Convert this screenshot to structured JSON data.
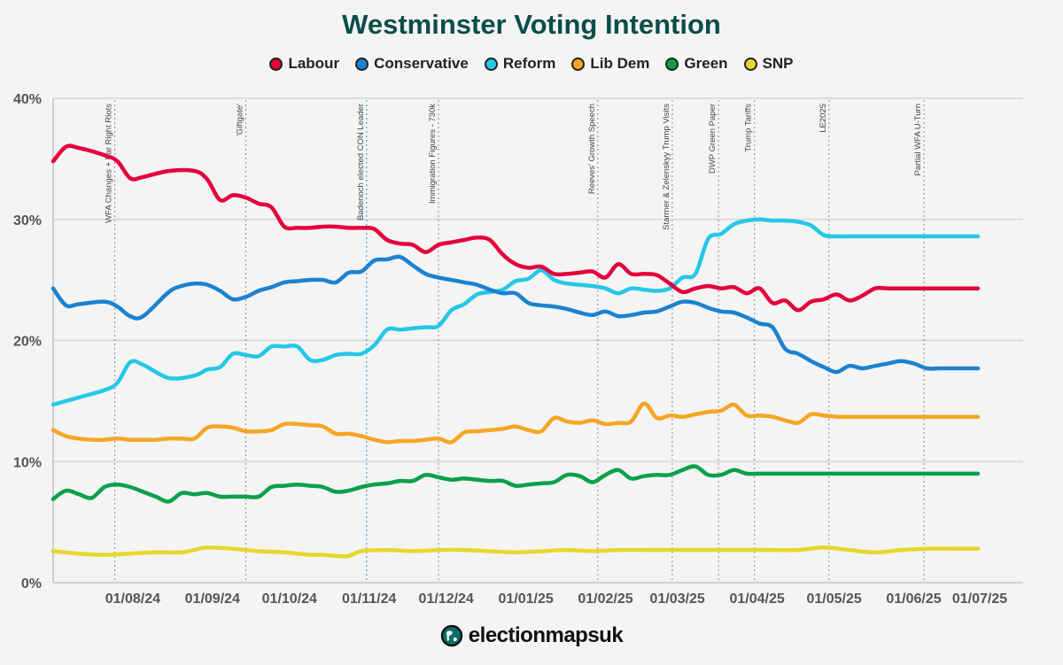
{
  "title": "Westminster Voting Intention",
  "brand": "electionmapsuk",
  "colors": {
    "title": "#0b4d4a",
    "Labour": "#e4003b",
    "Conservative": "#1c82d0",
    "Reform": "#24c8e6",
    "Lib Dem": "#f5a623",
    "Green": "#0aa04a",
    "SNP": "#e8d62e"
  },
  "chart_data": {
    "type": "line",
    "title": "Westminster Voting Intention",
    "xlabel": "",
    "ylabel": "",
    "ylim": [
      0,
      40
    ],
    "yticks": [
      0,
      10,
      20,
      30,
      40
    ],
    "ytick_labels": [
      "0%",
      "10%",
      "20%",
      "30%",
      "40%"
    ],
    "xlim": [
      0,
      360
    ],
    "xticks": [
      31,
      62,
      92,
      123,
      153,
      184,
      215,
      243,
      274,
      304,
      335,
      365
    ],
    "xtick_labels": [
      "01/08/24",
      "01/09/24",
      "01/10/24",
      "01/11/24",
      "01/12/24",
      "01/01/25",
      "01/02/25",
      "01/03/25",
      "01/04/25",
      "01/05/25",
      "01/06/25",
      "01/07/25"
    ],
    "x_unit": "days since 07/07/24 (approx.)",
    "grid": true,
    "legend": "top-center",
    "events": [
      {
        "x": 24,
        "label": "WFA Changes + Far Right Riots"
      },
      {
        "x": 75,
        "label": "'Giftgate'"
      },
      {
        "x": 122,
        "label": "Badenoch elected CON Leader"
      },
      {
        "x": 150,
        "label": "Immigration Figures - 730k"
      },
      {
        "x": 212,
        "label": "Reeves' Growth Speech"
      },
      {
        "x": 241,
        "label": "Starmer & Zelenskyy Trump Visits"
      },
      {
        "x": 259,
        "label": "DWP Green Paper"
      },
      {
        "x": 273,
        "label": "Trump Tariffs"
      },
      {
        "x": 302,
        "label": "LE2025"
      },
      {
        "x": 339,
        "label": "Partial WFA U-Turn"
      }
    ],
    "series": [
      {
        "name": "Labour",
        "x": [
          0,
          5,
          10,
          20,
          25,
          30,
          35,
          45,
          55,
          60,
          65,
          70,
          75,
          80,
          85,
          90,
          95,
          100,
          105,
          110,
          115,
          120,
          125,
          130,
          135,
          140,
          145,
          150,
          155,
          160,
          165,
          170,
          175,
          180,
          185,
          190,
          195,
          200,
          205,
          210,
          215,
          220,
          225,
          230,
          235,
          240,
          245,
          250,
          255,
          260,
          265,
          270,
          275,
          280,
          285,
          290,
          295,
          300,
          305,
          310,
          315,
          320,
          325,
          330,
          335,
          340,
          345,
          350,
          355,
          360
        ],
        "values": [
          34.8,
          36,
          35.9,
          35.3,
          34.8,
          33.4,
          33.5,
          34,
          34,
          33.3,
          31.6,
          32,
          31.8,
          31.3,
          31,
          29.4,
          29.3,
          29.3,
          29.4,
          29.4,
          29.3,
          29.3,
          29.2,
          28.3,
          28,
          27.9,
          27.3,
          27.9,
          28.1,
          28.3,
          28.5,
          28.3,
          27.1,
          26.3,
          26,
          26.1,
          25.5,
          25.5,
          25.6,
          25.7,
          25.2,
          26.3,
          25.5,
          25.5,
          25.4,
          24.7,
          24,
          24.3,
          24.5,
          24.3,
          24.4,
          23.9,
          24.3,
          23.1,
          23.3,
          22.5,
          23.2,
          23.4,
          23.8,
          23.3,
          23.7,
          24.3,
          24.3,
          24.3,
          24.3,
          24.3,
          24.3,
          24.3,
          24.3,
          24.3
        ]
      },
      {
        "name": "Conservative",
        "x": [
          0,
          5,
          10,
          20,
          25,
          30,
          35,
          45,
          50,
          55,
          60,
          65,
          70,
          75,
          80,
          85,
          90,
          95,
          100,
          105,
          110,
          115,
          120,
          125,
          130,
          135,
          140,
          145,
          150,
          155,
          160,
          165,
          170,
          175,
          180,
          185,
          190,
          195,
          200,
          205,
          210,
          215,
          220,
          225,
          230,
          235,
          240,
          245,
          250,
          255,
          260,
          265,
          270,
          275,
          280,
          285,
          290,
          295,
          300,
          305,
          310,
          315,
          320,
          325,
          330,
          335,
          340,
          345,
          350,
          355,
          360
        ],
        "values": [
          24.3,
          22.9,
          23,
          23.2,
          22.8,
          22,
          22,
          24,
          24.5,
          24.7,
          24.6,
          24.1,
          23.4,
          23.6,
          24.1,
          24.4,
          24.8,
          24.9,
          25,
          25,
          24.8,
          25.6,
          25.7,
          26.6,
          26.7,
          26.9,
          26.2,
          25.5,
          25.2,
          25,
          24.8,
          24.6,
          24.2,
          23.9,
          23.9,
          23.1,
          22.9,
          22.8,
          22.6,
          22.3,
          22.1,
          22.4,
          22,
          22.1,
          22.3,
          22.4,
          22.8,
          23.2,
          23.1,
          22.7,
          22.4,
          22.3,
          21.9,
          21.4,
          21.1,
          19.3,
          18.9,
          18.3,
          17.8,
          17.4,
          17.9,
          17.7,
          17.9,
          18.1,
          18.3,
          18.1,
          17.7,
          17.7,
          17.7,
          17.7,
          17.7
        ]
      },
      {
        "name": "Reform",
        "x": [
          0,
          10,
          20,
          25,
          30,
          35,
          45,
          55,
          60,
          65,
          70,
          75,
          80,
          85,
          90,
          95,
          100,
          105,
          110,
          115,
          120,
          125,
          130,
          135,
          140,
          145,
          150,
          155,
          160,
          165,
          170,
          175,
          180,
          185,
          190,
          195,
          200,
          205,
          210,
          215,
          220,
          225,
          230,
          235,
          240,
          245,
          250,
          255,
          260,
          265,
          270,
          275,
          280,
          285,
          290,
          295,
          300,
          305,
          310,
          315,
          320,
          325,
          330,
          335,
          340,
          345,
          350,
          355,
          360
        ],
        "values": [
          14.7,
          15.3,
          15.9,
          16.5,
          18.2,
          18,
          16.9,
          17.1,
          17.6,
          17.8,
          18.9,
          18.8,
          18.7,
          19.5,
          19.5,
          19.5,
          18.4,
          18.4,
          18.8,
          18.9,
          18.9,
          19.6,
          20.9,
          20.9,
          21,
          21.1,
          21.2,
          22.5,
          23,
          23.8,
          24,
          24.2,
          24.9,
          25.1,
          25.8,
          25,
          24.7,
          24.6,
          24.5,
          24.3,
          23.9,
          24.3,
          24.2,
          24.1,
          24.3,
          25.2,
          25.5,
          28.4,
          28.8,
          29.6,
          29.9,
          30,
          29.9,
          29.9,
          29.8,
          29.5,
          28.7,
          28.6,
          28.6,
          28.6,
          28.6,
          28.6,
          28.6,
          28.6,
          28.6,
          28.6,
          28.6,
          28.6,
          28.6
        ]
      },
      {
        "name": "Lib Dem",
        "x": [
          0,
          5,
          10,
          15,
          20,
          25,
          30,
          35,
          40,
          45,
          50,
          55,
          60,
          65,
          70,
          75,
          80,
          85,
          90,
          95,
          100,
          105,
          110,
          115,
          120,
          125,
          130,
          135,
          140,
          145,
          150,
          155,
          160,
          165,
          170,
          175,
          180,
          185,
          190,
          195,
          200,
          205,
          210,
          215,
          220,
          225,
          230,
          235,
          240,
          245,
          250,
          255,
          260,
          265,
          270,
          275,
          280,
          285,
          290,
          295,
          300,
          305,
          310,
          315,
          320,
          325,
          330,
          335,
          340,
          345,
          350,
          355,
          360
        ],
        "values": [
          12.6,
          12.1,
          11.9,
          11.8,
          11.8,
          11.9,
          11.8,
          11.8,
          11.8,
          11.9,
          11.9,
          11.9,
          12.8,
          12.9,
          12.8,
          12.5,
          12.5,
          12.6,
          13.1,
          13.1,
          13,
          12.9,
          12.3,
          12.3,
          12.1,
          11.8,
          11.6,
          11.7,
          11.7,
          11.8,
          11.9,
          11.6,
          12.4,
          12.5,
          12.6,
          12.7,
          12.9,
          12.6,
          12.5,
          13.6,
          13.3,
          13.2,
          13.4,
          13.1,
          13.2,
          13.3,
          14.8,
          13.6,
          13.8,
          13.7,
          13.9,
          14.1,
          14.2,
          14.7,
          13.8,
          13.8,
          13.7,
          13.4,
          13.2,
          13.9,
          13.8,
          13.7,
          13.7,
          13.7,
          13.7,
          13.7,
          13.7,
          13.7,
          13.7,
          13.7,
          13.7,
          13.7,
          13.7
        ]
      },
      {
        "name": "Green",
        "x": [
          0,
          5,
          10,
          15,
          20,
          25,
          30,
          35,
          40,
          45,
          50,
          55,
          60,
          65,
          70,
          75,
          80,
          85,
          90,
          95,
          100,
          105,
          110,
          115,
          120,
          125,
          130,
          135,
          140,
          145,
          150,
          155,
          160,
          165,
          170,
          175,
          180,
          185,
          190,
          195,
          200,
          205,
          210,
          215,
          220,
          225,
          230,
          235,
          240,
          245,
          250,
          255,
          260,
          265,
          270,
          275,
          280,
          285,
          290,
          295,
          300,
          305,
          310,
          315,
          320,
          325,
          330,
          335,
          340,
          345,
          350,
          355,
          360
        ],
        "values": [
          6.9,
          7.6,
          7.3,
          7,
          7.9,
          8.1,
          7.9,
          7.5,
          7.1,
          6.7,
          7.4,
          7.3,
          7.4,
          7.1,
          7.1,
          7.1,
          7.1,
          7.9,
          8,
          8.1,
          8,
          7.9,
          7.5,
          7.6,
          7.9,
          8.1,
          8.2,
          8.4,
          8.4,
          8.9,
          8.7,
          8.5,
          8.6,
          8.5,
          8.4,
          8.4,
          8,
          8.1,
          8.2,
          8.3,
          8.9,
          8.8,
          8.3,
          8.9,
          9.3,
          8.6,
          8.8,
          8.9,
          8.9,
          9.3,
          9.6,
          8.9,
          8.9,
          9.3,
          9,
          9,
          9,
          9,
          9,
          9,
          9,
          9,
          9,
          9,
          9,
          9,
          9,
          9,
          9,
          9,
          9,
          9,
          9
        ]
      },
      {
        "name": "SNP",
        "x": [
          0,
          10,
          20,
          30,
          40,
          50,
          55,
          60,
          70,
          80,
          90,
          100,
          105,
          110,
          115,
          120,
          130,
          140,
          150,
          160,
          170,
          180,
          190,
          200,
          210,
          220,
          230,
          240,
          250,
          260,
          270,
          280,
          290,
          300,
          310,
          320,
          330,
          340,
          350,
          360
        ],
        "values": [
          2.6,
          2.4,
          2.3,
          2.4,
          2.5,
          2.5,
          2.7,
          2.9,
          2.8,
          2.6,
          2.5,
          2.3,
          2.3,
          2.2,
          2.2,
          2.6,
          2.7,
          2.6,
          2.7,
          2.7,
          2.6,
          2.5,
          2.6,
          2.7,
          2.6,
          2.7,
          2.7,
          2.7,
          2.7,
          2.7,
          2.7,
          2.7,
          2.7,
          2.9,
          2.7,
          2.5,
          2.7,
          2.8,
          2.8,
          2.8
        ]
      }
    ]
  }
}
